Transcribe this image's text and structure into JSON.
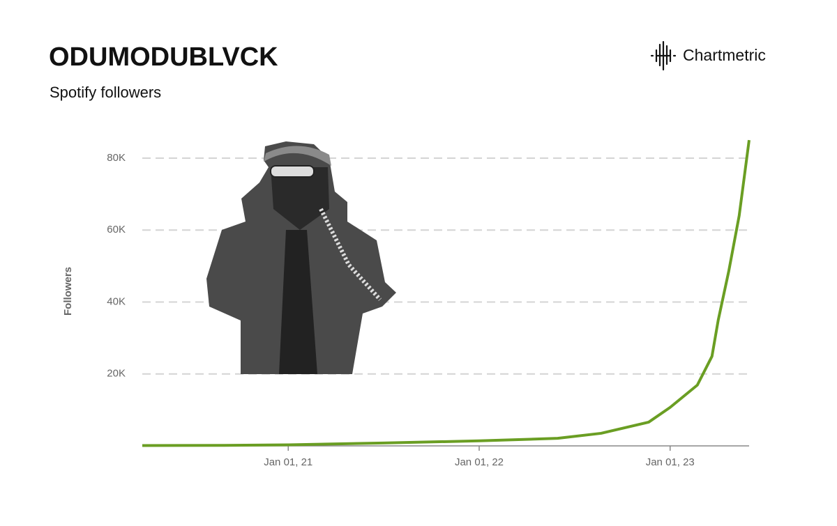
{
  "brand": "Chartmetric",
  "chart_data": {
    "type": "line",
    "title": "ODUMODUBLVCK",
    "subtitle": "Spotify followers",
    "y_label": "Followers",
    "color": "#6a9e23",
    "grid": true,
    "x": [
      "2020-03-28",
      "2020-09-01",
      "2021-01-01",
      "2021-07-01",
      "2022-01-01",
      "2022-05-31",
      "2022-08-22",
      "2022-11-21",
      "2023-01-01",
      "2023-02-22",
      "2023-03-22",
      "2023-04-03",
      "2023-04-23",
      "2023-05-13",
      "2023-06-01"
    ],
    "values": [
      100,
      150,
      300,
      800,
      1400,
      2100,
      3500,
      6600,
      10700,
      16900,
      24900,
      35000,
      48500,
      64000,
      85000
    ],
    "xlim": [
      "2020-03-28",
      "2023-06-01"
    ],
    "xticks": [
      {
        "value": "2021-01-01",
        "label": "Jan 01, 21"
      },
      {
        "value": "2022-01-01",
        "label": "Jan 01, 22"
      },
      {
        "value": "2023-01-01",
        "label": "Jan 01, 23"
      }
    ],
    "ylim": [
      0,
      86000
    ],
    "yticks": [
      {
        "value": 20000,
        "label": "20K"
      },
      {
        "value": 40000,
        "label": "40K"
      },
      {
        "value": 60000,
        "label": "60K"
      },
      {
        "value": 80000,
        "label": "80K"
      }
    ]
  }
}
